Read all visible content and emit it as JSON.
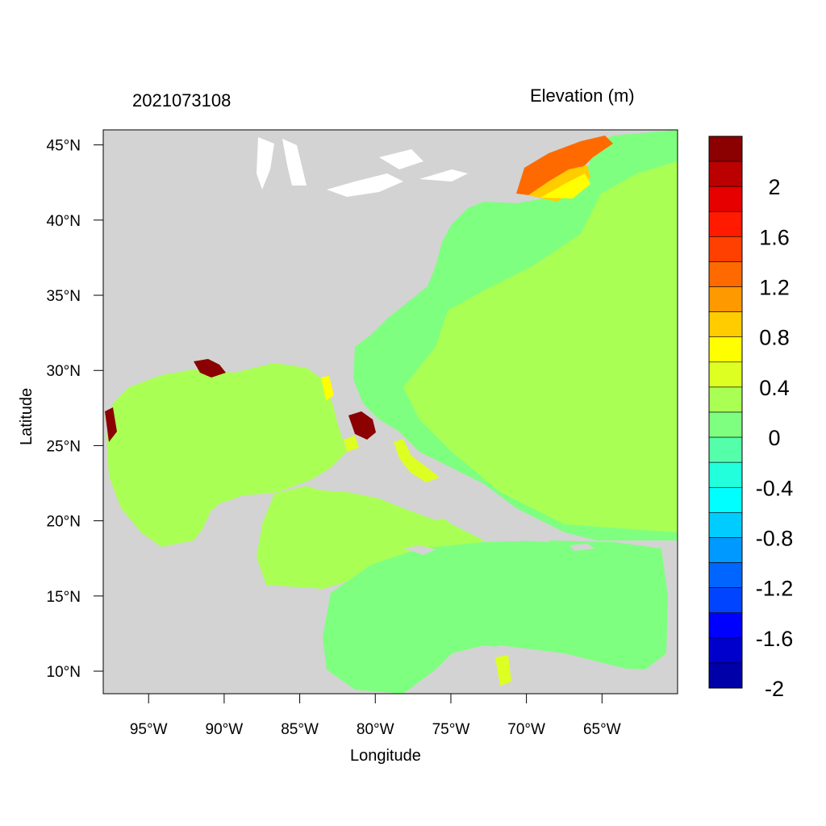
{
  "map": {
    "left_title": "2021073108",
    "right_title": "Elevation (m)",
    "xlabel": "Longitude",
    "ylabel": "Latitude",
    "lon_range": [
      -98,
      -60
    ],
    "lat_range": [
      8.5,
      46
    ],
    "colors": {
      "land": "#d3d3d3",
      "ocean_zero": "#aaff55",
      "ocean_slightly_negative": "#7fff80",
      "inland_water": "#ffffff"
    }
  },
  "axes": {
    "x_ticks": [
      {
        "lon": -95,
        "label": "95°W"
      },
      {
        "lon": -90,
        "label": "90°W"
      },
      {
        "lon": -85,
        "label": "85°W"
      },
      {
        "lon": -80,
        "label": "80°W"
      },
      {
        "lon": -75,
        "label": "75°W"
      },
      {
        "lon": -70,
        "label": "70°W"
      },
      {
        "lon": -65,
        "label": "65°W"
      }
    ],
    "y_ticks": [
      {
        "lat": 45,
        "label": "45°N"
      },
      {
        "lat": 40,
        "label": "40°N"
      },
      {
        "lat": 35,
        "label": "35°N"
      },
      {
        "lat": 30,
        "label": "30°N"
      },
      {
        "lat": 25,
        "label": "25°N"
      },
      {
        "lat": 20,
        "label": "20°N"
      },
      {
        "lat": 15,
        "label": "15°N"
      },
      {
        "lat": 10,
        "label": "10°N"
      }
    ]
  },
  "colorbar": {
    "colors_top_to_bottom": [
      "#8b0000",
      "#bb0000",
      "#e60000",
      "#ff1a00",
      "#ff4000",
      "#ff6a00",
      "#ff9900",
      "#ffcc00",
      "#ffff00",
      "#ddff22",
      "#aaff55",
      "#7fff80",
      "#55ffaa",
      "#22ffdd",
      "#00ffff",
      "#00ccff",
      "#0099ff",
      "#0066ff",
      "#0044ff",
      "#0000ff",
      "#0000cc",
      "#0000a8"
    ],
    "labels": [
      {
        "value": 2,
        "text": "2"
      },
      {
        "value": 1.6,
        "text": "1.6"
      },
      {
        "value": 1.2,
        "text": "1.2"
      },
      {
        "value": 0.8,
        "text": "0.8"
      },
      {
        "value": 0.4,
        "text": "0.4"
      },
      {
        "value": 0,
        "text": "0"
      },
      {
        "value": -0.4,
        "text": "-0.4"
      },
      {
        "value": -0.8,
        "text": "-0.8"
      },
      {
        "value": -1.2,
        "text": "-1.2"
      },
      {
        "value": -1.6,
        "text": "-1.6"
      },
      {
        "value": -2,
        "text": "-2"
      }
    ]
  }
}
